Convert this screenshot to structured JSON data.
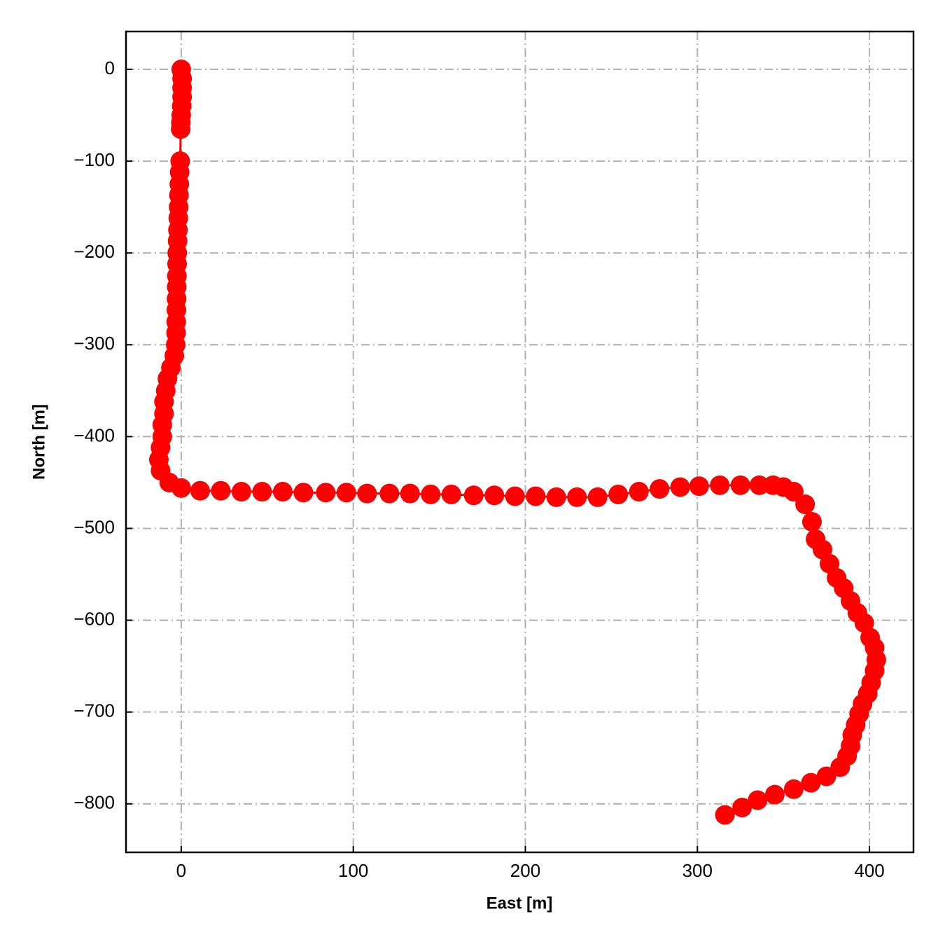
{
  "chart_data": {
    "type": "line",
    "xlabel": "East [m]",
    "ylabel": "North [m]",
    "color": "#ff0000",
    "grid": true,
    "xlim": [
      -32.1,
      425.6
    ],
    "ylim": [
      -852.8,
      41.2
    ],
    "xticks": [
      0,
      100,
      200,
      300,
      400
    ],
    "yticks": [
      0,
      {
        "value": -100,
        "label": "−100"
      },
      {
        "value": -200,
        "label": "−200"
      },
      {
        "value": -300,
        "label": "−300"
      },
      {
        "value": -400,
        "label": "−400"
      },
      {
        "value": -500,
        "label": "−500"
      },
      {
        "value": -600,
        "label": "−600"
      },
      {
        "value": -700,
        "label": "−700"
      },
      {
        "value": -800,
        "label": "−800"
      }
    ],
    "x": [
      0,
      0.5,
      0.5,
      0.5,
      0.3,
      0,
      -0.2,
      -0.3,
      -0.6,
      -0.9,
      -1.1,
      -1.3,
      -1.5,
      -1.7,
      -1.9,
      -2.1,
      -2.3,
      -2.4,
      -2.5,
      -2.6,
      -2.7,
      -2.8,
      -2.9,
      -3,
      -3.2,
      -4,
      -6,
      -8,
      -9,
      -10,
      -10,
      -11,
      -11,
      -12,
      -13,
      -12,
      -7,
      0,
      11,
      23,
      35,
      47,
      59,
      71,
      84,
      96,
      108,
      121,
      133,
      145,
      157,
      170,
      182,
      194,
      206,
      218,
      230,
      242,
      254,
      266,
      278,
      290,
      301,
      313,
      325,
      336,
      344,
      350,
      356,
      362.6,
      366.6,
      368.7,
      372.7,
      376.8,
      380.9,
      385,
      389,
      393,
      397,
      400.4,
      403,
      404,
      403,
      401,
      399,
      396,
      394,
      392,
      390,
      389,
      387,
      383,
      375,
      366,
      356,
      345,
      335,
      326,
      316
    ],
    "values": [
      0,
      -10,
      -20,
      -30,
      -40,
      -50,
      -58,
      -65,
      -100,
      -112,
      -125,
      -137,
      -150,
      -162,
      -175,
      -187,
      -200,
      -212,
      -225,
      -237,
      -250,
      -262,
      -275,
      -287,
      -300,
      -312,
      -325,
      -337,
      -350,
      -362,
      -375,
      -387,
      -400,
      -412,
      -425,
      -437,
      -450,
      -456,
      -459,
      -459,
      -460,
      -460,
      -460,
      -461,
      -461,
      -461,
      -462,
      -462,
      -462,
      -463,
      -463,
      -464,
      -464,
      -465,
      -465,
      -466,
      -466,
      -466,
      -463,
      -460,
      -457,
      -455,
      -454,
      -453,
      -453,
      -453,
      -453,
      -455,
      -460,
      -473.7,
      -492.8,
      -511.8,
      -523,
      -538.5,
      -553.8,
      -565,
      -579,
      -592,
      -603,
      -619,
      -630,
      -643,
      -655,
      -668,
      -680,
      -691,
      -702,
      -714,
      -725,
      -737,
      -748,
      -760,
      -770,
      -777,
      -784,
      -790,
      -796,
      -804,
      -812
    ]
  }
}
